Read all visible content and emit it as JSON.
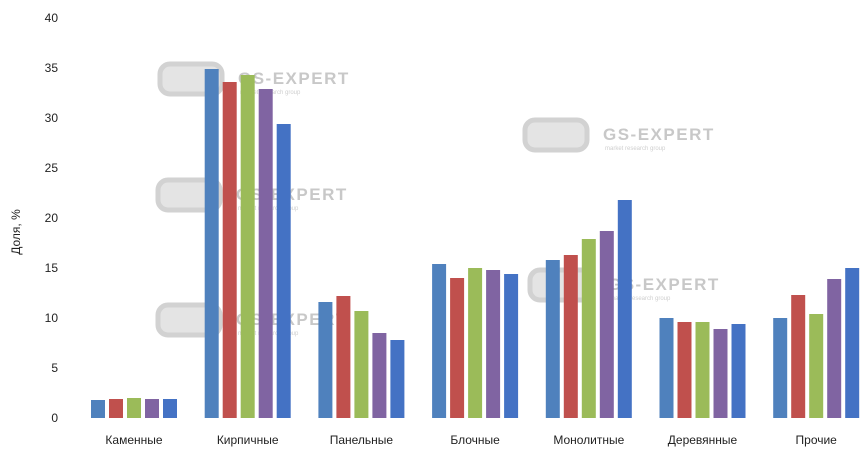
{
  "chart_data": {
    "type": "bar",
    "title": "",
    "xlabel": "",
    "ylabel": "Доля, %",
    "ylim": [
      0,
      40
    ],
    "yticks": [
      0,
      5,
      10,
      15,
      20,
      25,
      30,
      35,
      40
    ],
    "grid": false,
    "legend": "none",
    "categories": [
      "Каменные",
      "Кирпичные",
      "Панельные",
      "Блочные",
      "Монолитные",
      "Деревянные",
      "Прочие"
    ],
    "series": [
      {
        "color": "#4f81bd",
        "values": [
          1.8,
          34.9,
          11.6,
          15.4,
          15.8,
          10.0,
          10.0
        ]
      },
      {
        "color": "#c0504d",
        "values": [
          1.9,
          33.6,
          12.2,
          14.0,
          16.3,
          9.6,
          12.3
        ]
      },
      {
        "color": "#9bbb59",
        "values": [
          2.0,
          34.3,
          10.7,
          15.0,
          17.9,
          9.6,
          10.4
        ]
      },
      {
        "color": "#8064a2",
        "values": [
          1.9,
          32.9,
          8.5,
          14.8,
          18.7,
          8.9,
          13.9
        ]
      },
      {
        "color": "#4472c4",
        "values": [
          1.9,
          29.4,
          7.8,
          14.4,
          21.8,
          9.4,
          15.0
        ]
      }
    ]
  },
  "watermark": {
    "brand": "GS-EXPERT",
    "tagline": "market research group"
  }
}
